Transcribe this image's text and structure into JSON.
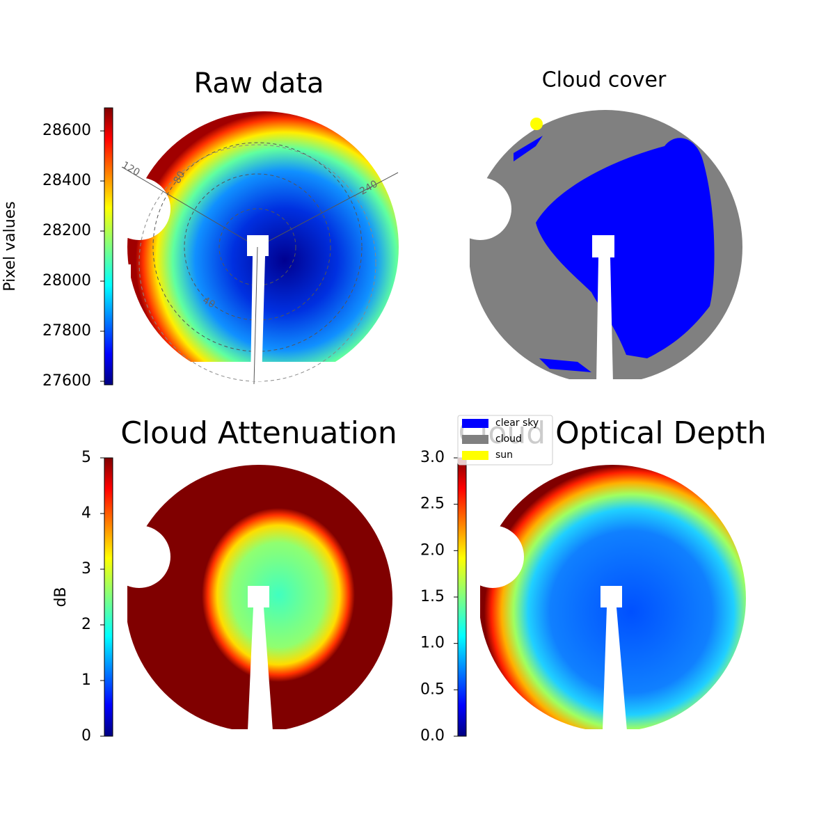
{
  "chart_data": [
    {
      "type": "image",
      "title": "Raw data",
      "colormap": "jet",
      "colorbar": {
        "label": "Pixel values",
        "ylim": [
          27586,
          28692
        ],
        "yticks": [
          27600,
          27800,
          28000,
          28200,
          28400,
          28600
        ]
      },
      "polar_labels": [
        "120",
        "80",
        "240",
        "40"
      ]
    },
    {
      "type": "image",
      "title": "Cloud cover",
      "legend": [
        {
          "name": "clear sky",
          "color": "#0000ff"
        },
        {
          "name": "cloud",
          "color": "#808080"
        },
        {
          "name": "sun",
          "color": "#ffff00"
        }
      ]
    },
    {
      "type": "image",
      "title": "Cloud Attenuation",
      "colormap": "jet",
      "colorbar": {
        "label": "dB",
        "ylim": [
          0,
          5
        ],
        "yticks": [
          0,
          1,
          2,
          3,
          4,
          5
        ]
      }
    },
    {
      "type": "image",
      "title": "Cloud Optical Depth",
      "colormap": "jet",
      "colorbar": {
        "ylim": [
          0,
          3
        ],
        "yticks": [
          {
            "value": 0,
            "label": "0.0"
          },
          {
            "value": 0.5,
            "label": "0.5"
          },
          {
            "value": 1,
            "label": "1.0"
          },
          {
            "value": 1.5,
            "label": "1.5"
          },
          {
            "value": 2,
            "label": "2.0"
          },
          {
            "value": 2.5,
            "label": "2.5"
          },
          {
            "value": 3,
            "label": "3.0"
          }
        ]
      }
    }
  ]
}
